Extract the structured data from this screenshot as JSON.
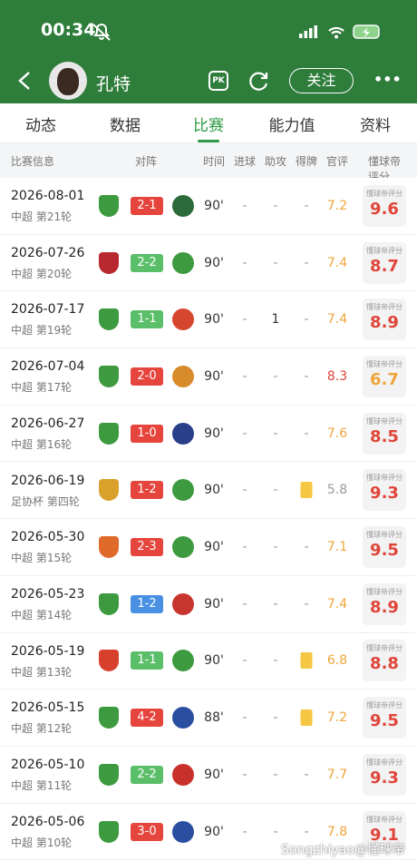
{
  "status_bar": {
    "time": "00:34"
  },
  "header": {
    "player_name": "孔特",
    "pk": "PK",
    "follow": "关注",
    "more": "•••"
  },
  "tabs": [
    "动态",
    "数据",
    "比赛",
    "能力值",
    "资料"
  ],
  "active_tab": 2,
  "columns": [
    "比赛信息",
    "对阵",
    "时间",
    "进球",
    "助攻",
    "得牌",
    "官评",
    "懂球帝评分"
  ],
  "rating_badge_label": "懂球帝评分",
  "matches": [
    {
      "date": "2026-08-01",
      "competition": "中超 第21轮",
      "score": "2-1",
      "score_color": "#e5453c",
      "minutes": "90'",
      "goals": "-",
      "assists": "-",
      "cards": "-",
      "official_rating": 7.2,
      "official_color": "#eea53a",
      "rating": 9.6,
      "rating_color": "#e0453a"
    },
    {
      "date": "2026-07-26",
      "competition": "中超 第20轮",
      "score": "2-2",
      "score_color": "#5bbf6a",
      "minutes": "90'",
      "goals": "-",
      "assists": "-",
      "cards": "-",
      "official_rating": 7.4,
      "official_color": "#eea53a",
      "rating": 8.7,
      "rating_color": "#e0453a"
    },
    {
      "date": "2026-07-17",
      "competition": "中超 第19轮",
      "score": "1-1",
      "score_color": "#5bbf6a",
      "minutes": "90'",
      "goals": "-",
      "assists": 1,
      "cards": "-",
      "official_rating": 7.4,
      "official_color": "#eea53a",
      "rating": 8.9,
      "rating_color": "#e0453a"
    },
    {
      "date": "2026-07-04",
      "competition": "中超 第17轮",
      "score": "2-0",
      "score_color": "#e5453c",
      "minutes": "90'",
      "goals": "-",
      "assists": "-",
      "cards": "-",
      "official_rating": 8.3,
      "official_color": "#e0453a",
      "rating": 6.7,
      "rating_color": "#eea53a"
    },
    {
      "date": "2026-06-27",
      "competition": "中超 第16轮",
      "score": "1-0",
      "score_color": "#e5453c",
      "minutes": "90'",
      "goals": "-",
      "assists": "-",
      "cards": "-",
      "official_rating": 7.6,
      "official_color": "#eea53a",
      "rating": 8.5,
      "rating_color": "#e0453a"
    },
    {
      "date": "2026-06-19",
      "competition": "足协杯 第四轮",
      "score": "1-2",
      "score_color": "#e5453c",
      "minutes": "90'",
      "goals": "-",
      "assists": "-",
      "card_color": "#f6c744",
      "official_rating": 5.8,
      "official_color": "#9a9a9a",
      "rating": 9.3,
      "rating_color": "#e0453a"
    },
    {
      "date": "2026-05-30",
      "competition": "中超 第15轮",
      "score": "2-3",
      "score_color": "#e5453c",
      "minutes": "90'",
      "goals": "-",
      "assists": "-",
      "cards": "-",
      "official_rating": 7.1,
      "official_color": "#eea53a",
      "rating": 9.5,
      "rating_color": "#e0453a"
    },
    {
      "date": "2026-05-23",
      "competition": "中超 第14轮",
      "score": "1-2",
      "score_color": "#4a90e2",
      "minutes": "90'",
      "goals": "-",
      "assists": "-",
      "cards": "-",
      "official_rating": 7.4,
      "official_color": "#eea53a",
      "rating": 8.9,
      "rating_color": "#e0453a"
    },
    {
      "date": "2026-05-19",
      "competition": "中超 第13轮",
      "score": "1-1",
      "score_color": "#5bbf6a",
      "minutes": "90'",
      "goals": "-",
      "assists": "-",
      "card_color": "#f6c744",
      "official_rating": 6.8,
      "official_color": "#eea53a",
      "rating": 8.8,
      "rating_color": "#e0453a"
    },
    {
      "date": "2026-05-15",
      "competition": "中超 第12轮",
      "score": "4-2",
      "score_color": "#e5453c",
      "minutes": "88'",
      "goals": "-",
      "assists": "-",
      "card_color": "#f6c744",
      "official_rating": 7.2,
      "official_color": "#eea53a",
      "rating": 9.5,
      "rating_color": "#e0453a"
    },
    {
      "date": "2026-05-10",
      "competition": "中超 第11轮",
      "score": "2-2",
      "score_color": "#5bbf6a",
      "minutes": "90'",
      "goals": "-",
      "assists": "-",
      "cards": "-",
      "official_rating": 7.7,
      "official_color": "#eea53a",
      "rating": 9.3,
      "rating_color": "#e0453a"
    },
    {
      "date": "2026-05-06",
      "competition": "中超 第10轮",
      "score": "3-0",
      "score_color": "#e5453c",
      "minutes": "90'",
      "goals": "-",
      "assists": "-",
      "cards": "-",
      "official_rating": 7.8,
      "official_color": "#eea53a",
      "rating": 9.1,
      "rating_color": "#e0453a"
    }
  ],
  "watermark": "Songzhiyao@懂球帝"
}
